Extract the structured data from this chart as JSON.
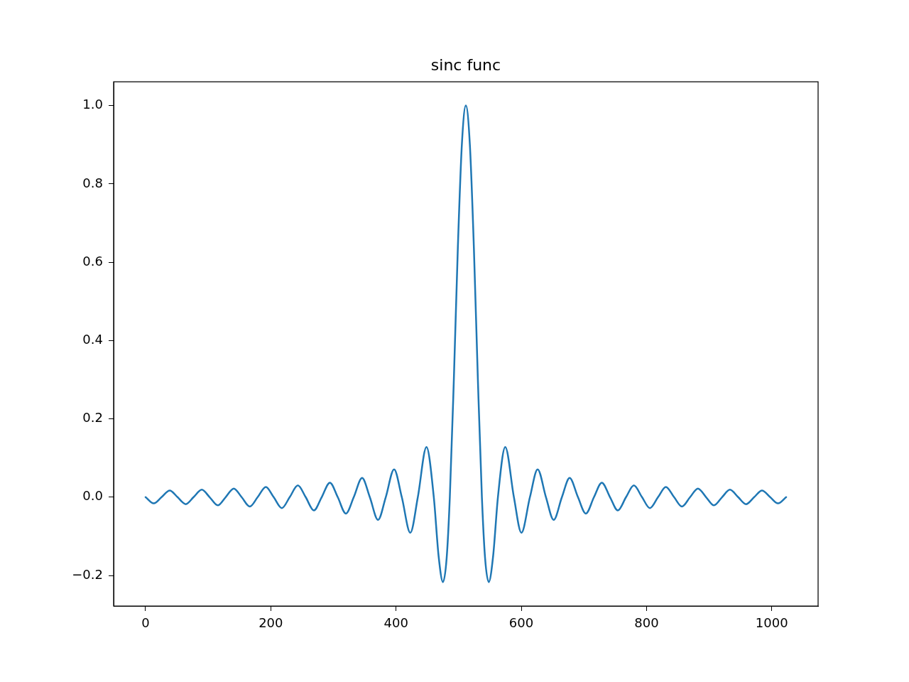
{
  "chart_data": {
    "type": "line",
    "title": "sinc func",
    "xlim": [
      -51,
      1074
    ],
    "xticks": [
      0,
      200,
      400,
      600,
      800,
      1000
    ],
    "ylim": [
      -0.278,
      1.061
    ],
    "yticks": [
      {
        "value": -0.2,
        "label": "−0.2"
      },
      {
        "value": 0,
        "label": "0.0"
      },
      {
        "value": 0.2,
        "label": "0.2"
      },
      {
        "value": 0.4,
        "label": "0.4"
      },
      {
        "value": 0.6,
        "label": "0.6"
      },
      {
        "value": 0.8,
        "label": "0.8"
      },
      {
        "value": 1,
        "label": "1.0"
      }
    ],
    "grid": false,
    "legend": false,
    "marker": "none",
    "line_style": "solid",
    "series": [
      {
        "color": "#1f77b4",
        "x": [
          0,
          13.0,
          25.6,
          38.6,
          51.1,
          64.2,
          76.7,
          89.8,
          102.3,
          115.3,
          127.9,
          140.9,
          153.4,
          166.5,
          179.0,
          192.1,
          204.6,
          217.6,
          230.2,
          243.2,
          255.7,
          268.8,
          281.3,
          294.4,
          306.9,
          319.9,
          332.5,
          345.8,
          358.1,
          371.3,
          383.6,
          396.9,
          409.2,
          422.8,
          434.8,
          448.6,
          460.3,
          468.0,
          474.9,
          480.8,
          485.9,
          492.3,
          498.7,
          505.1,
          511.5,
          517.9,
          524.3,
          530.7,
          537.1,
          542.2,
          548.1,
          555.0,
          562.7,
          574.4,
          588.2,
          600.2,
          613.8,
          626.1,
          639.4,
          651.7,
          664.9,
          677.2,
          690.5,
          703.1,
          716.1,
          728.6,
          741.7,
          754.2,
          767.3,
          779.8,
          792.8,
          805.4,
          818.4,
          830.9,
          844.0,
          856.5,
          869.6,
          882.1,
          895.1,
          907.7,
          920.7,
          933.2,
          946.3,
          958.8,
          971.9,
          984.4,
          997.4,
          1010.0,
          1023
        ],
        "values": [
          0,
          -0.016,
          0,
          0.017,
          0,
          -0.018,
          0,
          0.019,
          0,
          -0.021,
          0,
          0.022,
          0,
          -0.024,
          0,
          0.026,
          0,
          -0.028,
          0,
          0.03,
          0,
          -0.034,
          0,
          0.037,
          0,
          -0.042,
          0,
          0.049,
          0,
          -0.058,
          0,
          0.071,
          0,
          -0.091,
          0,
          0.128,
          0,
          -0.151,
          -0.217,
          -0.156,
          0,
          0.3,
          0.637,
          0.9,
          1.0,
          0.9,
          0.637,
          0.3,
          0,
          -0.156,
          -0.217,
          -0.151,
          0,
          0.128,
          0,
          -0.091,
          0,
          0.071,
          0,
          -0.058,
          0,
          0.049,
          0,
          -0.042,
          0,
          0.037,
          0,
          -0.034,
          0,
          0.03,
          0,
          -0.028,
          0,
          0.026,
          0,
          -0.024,
          0,
          0.022,
          0,
          -0.021,
          0,
          0.019,
          0,
          -0.018,
          0,
          0.017,
          0,
          -0.016,
          0
        ]
      }
    ]
  }
}
